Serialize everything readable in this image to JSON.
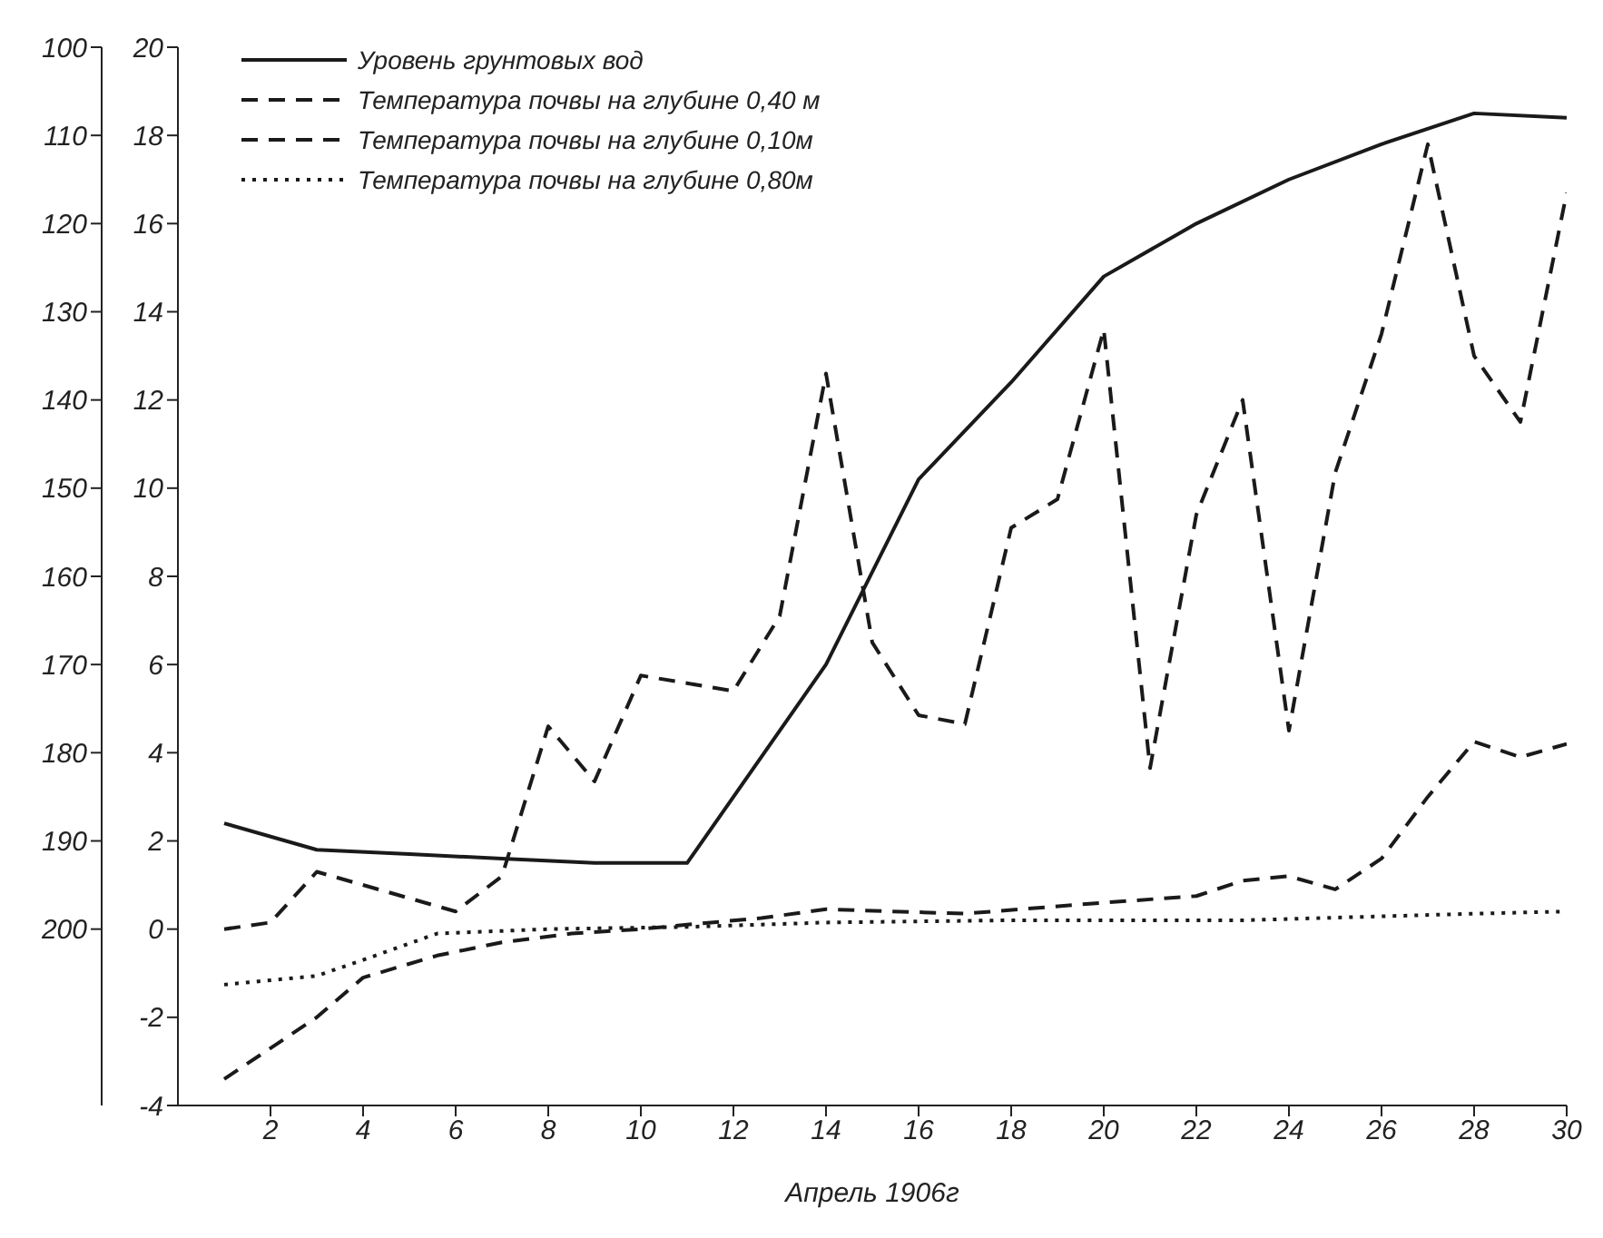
{
  "chart_data": {
    "type": "line",
    "xlabel": "Апрель 1906г",
    "xlim": [
      0,
      30
    ],
    "xticks": [
      2,
      4,
      6,
      8,
      10,
      12,
      14,
      16,
      18,
      20,
      22,
      24,
      26,
      28,
      30
    ],
    "ylim": [
      -4,
      20
    ],
    "yticks": [
      -4,
      -2,
      0,
      2,
      4,
      6,
      8,
      10,
      12,
      14,
      16,
      18,
      20
    ],
    "y2lim": [
      220,
      100
    ],
    "y2ticks": [
      100,
      110,
      120,
      130,
      140,
      150,
      160,
      170,
      180,
      190,
      200
    ],
    "grid": false,
    "legend": "top left",
    "marker": "none",
    "series": [
      {
        "name": "Уровень грунтовых вод",
        "color": "#1a1a1a",
        "line_style": "solid",
        "axis": "y2",
        "x": [
          1,
          3,
          5,
          7,
          9,
          11,
          14,
          16,
          18,
          20,
          22,
          24,
          26,
          28,
          30
        ],
        "values": [
          188,
          191,
          191.5,
          192,
          192.5,
          192.5,
          170,
          149,
          138,
          126,
          120,
          115,
          111,
          107.5,
          108
        ]
      },
      {
        "name": "Температура почвы на глубине 0,40 м",
        "color": "#1a1a1a",
        "line_style": "dashed",
        "x": [
          1,
          3,
          4,
          5.6,
          7,
          8.5,
          10,
          11,
          12.6,
          14,
          17,
          20,
          22,
          23,
          24,
          25,
          26,
          27,
          28,
          29,
          30
        ],
        "values": [
          -3.4,
          -2.0,
          -1.1,
          -0.6,
          -0.3,
          -0.1,
          0,
          0.1,
          0.25,
          0.45,
          0.35,
          0.6,
          0.75,
          1.1,
          1.2,
          0.9,
          1.6,
          3.0,
          4.25,
          3.9,
          4.2
        ]
      },
      {
        "name": "Температура почвы на глубине 0,10м",
        "color": "#1a1a1a",
        "line_style": "dashed",
        "x": [
          1,
          2,
          3,
          6,
          7,
          8,
          9,
          10,
          12,
          13,
          14,
          15,
          16,
          17,
          18,
          19,
          20,
          21,
          22,
          23,
          24,
          25,
          26,
          27,
          28,
          29,
          30
        ],
        "values": [
          0,
          0.15,
          1.3,
          0.4,
          1.2,
          4.6,
          3.35,
          5.75,
          5.4,
          7.1,
          12.6,
          6.5,
          4.85,
          4.65,
          9.1,
          9.75,
          13.6,
          3.65,
          9.4,
          12,
          4.5,
          10.35,
          13.5,
          17.8,
          13,
          11.5,
          16.7
        ]
      },
      {
        "name": "Температура почвы на глубине 0,80м",
        "color": "#1a1a1a",
        "line_style": "dotted",
        "x": [
          1,
          3,
          4,
          5.6,
          8,
          11,
          14,
          18,
          23,
          28,
          30
        ],
        "values": [
          -1.26,
          -1.06,
          -0.7,
          -0.1,
          0,
          0.05,
          0.15,
          0.2,
          0.2,
          0.35,
          0.4
        ]
      }
    ]
  }
}
